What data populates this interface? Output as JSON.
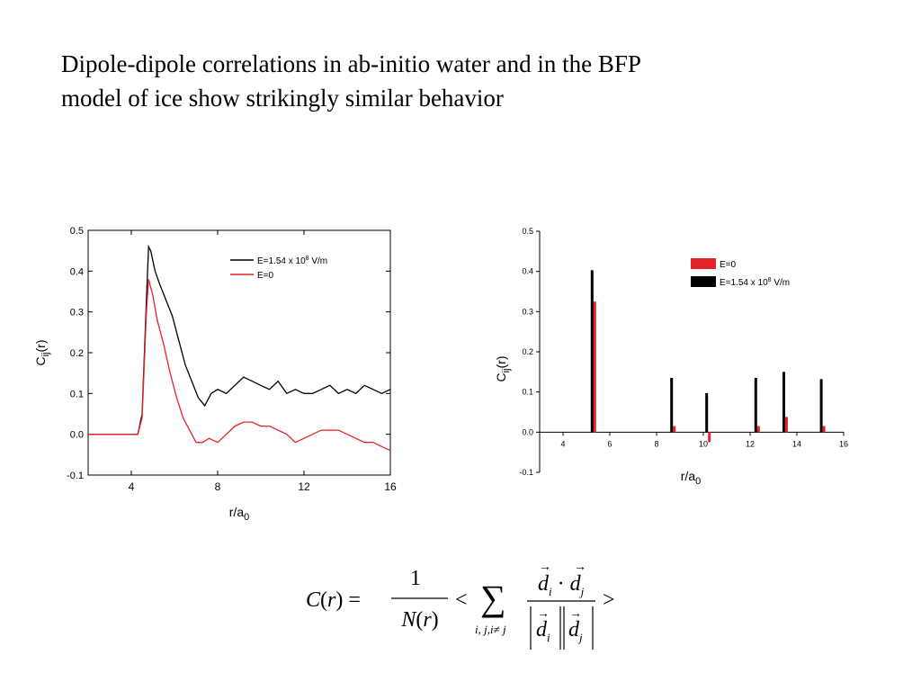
{
  "slide": {
    "title_lines": [
      "Dipole-dipole correlations in ab-initio water and in the BFP",
      "model of ice show strikingly similar behavior"
    ]
  },
  "formula": {
    "lhs": "C(r) = ",
    "numerator": "1",
    "denominator": "N(r)",
    "lt": "<",
    "gt": ">",
    "sum_symbol": "∑",
    "sum_index": "i, j,i≠ j",
    "vec_num": "d_i · d_j",
    "vec_den": "|d_i||d_j|"
  },
  "chart_data": [
    {
      "type": "line",
      "xlabel": "r/a0",
      "ylabel": "Cij(r)",
      "xlim": [
        2,
        16
      ],
      "ylim": [
        -0.1,
        0.5
      ],
      "x_ticks": [
        4,
        8,
        12,
        16
      ],
      "y_ticks": [
        -0.1,
        0.0,
        0.1,
        0.2,
        0.3,
        0.4,
        0.5
      ],
      "legend_position": "top-right",
      "series": [
        {
          "name": "E=1.54 x 10^8 V/m",
          "color": "#000000",
          "x": [
            2.0,
            4.3,
            4.5,
            4.7,
            4.8,
            4.9,
            5.1,
            5.3,
            5.6,
            5.9,
            6.2,
            6.5,
            6.8,
            7.1,
            7.4,
            7.7,
            8.0,
            8.4,
            8.8,
            9.2,
            9.6,
            10.0,
            10.4,
            10.8,
            11.2,
            11.6,
            12.0,
            12.4,
            12.8,
            13.2,
            13.6,
            14.0,
            14.4,
            14.8,
            15.2,
            15.6,
            16.0
          ],
          "y": [
            0.0,
            0.0,
            0.05,
            0.33,
            0.46,
            0.45,
            0.4,
            0.37,
            0.33,
            0.29,
            0.23,
            0.17,
            0.13,
            0.09,
            0.07,
            0.1,
            0.11,
            0.1,
            0.12,
            0.14,
            0.13,
            0.12,
            0.11,
            0.13,
            0.1,
            0.11,
            0.1,
            0.1,
            0.11,
            0.12,
            0.1,
            0.11,
            0.1,
            0.12,
            0.11,
            0.1,
            0.11
          ]
        },
        {
          "name": "E=0",
          "color": "#e3242b",
          "x": [
            2.0,
            4.3,
            4.5,
            4.7,
            4.8,
            5.0,
            5.2,
            5.5,
            5.8,
            6.1,
            6.4,
            6.7,
            7.0,
            7.3,
            7.6,
            8.0,
            8.4,
            8.8,
            9.2,
            9.6,
            10.0,
            10.4,
            10.8,
            11.2,
            11.6,
            12.0,
            12.4,
            12.8,
            13.2,
            13.6,
            14.0,
            14.4,
            14.8,
            15.2,
            15.6,
            16.0
          ],
          "y": [
            0.0,
            0.0,
            0.04,
            0.3,
            0.38,
            0.34,
            0.28,
            0.22,
            0.15,
            0.09,
            0.04,
            0.01,
            -0.02,
            -0.02,
            -0.01,
            -0.02,
            0.0,
            0.02,
            0.03,
            0.03,
            0.02,
            0.02,
            0.01,
            0.0,
            -0.02,
            -0.01,
            0.0,
            0.01,
            0.01,
            0.01,
            0.0,
            -0.01,
            -0.02,
            -0.02,
            -0.03,
            -0.04
          ]
        }
      ]
    },
    {
      "type": "bar",
      "xlabel": "r/a0",
      "ylabel": "Cij(r)",
      "xlim": [
        3,
        16
      ],
      "ylim": [
        -0.1,
        0.5
      ],
      "x_ticks": [
        4,
        6,
        8,
        10,
        12,
        14,
        16
      ],
      "y_ticks": [
        -0.1,
        0.0,
        0.1,
        0.2,
        0.3,
        0.4,
        0.5
      ],
      "legend_position": "top-right",
      "x": [
        5.3,
        8.7,
        10.2,
        12.3,
        13.5,
        15.1
      ],
      "series": [
        {
          "name": "E=0",
          "color": "#e3242b",
          "values": [
            0.325,
            0.015,
            -0.025,
            0.015,
            0.038,
            0.015
          ]
        },
        {
          "name": "E=1.54 x 10^8 V/m",
          "color": "#000000",
          "values": [
            0.403,
            0.135,
            0.097,
            0.135,
            0.15,
            0.132
          ]
        }
      ]
    }
  ]
}
